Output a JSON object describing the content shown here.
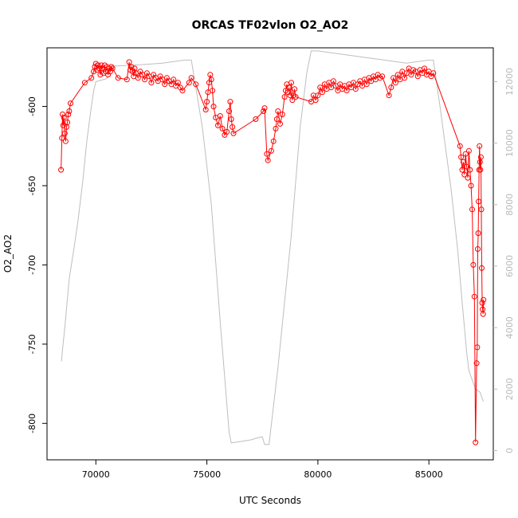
{
  "chart_data": {
    "type": "scatter",
    "title": "ORCAS TF02vlon O2_AO2",
    "xlabel": "UTC Seconds",
    "ylabel": "O2_AO2",
    "xlim": [
      67800,
      87900
    ],
    "ylim": [
      -823,
      -563
    ],
    "y2lim": [
      -300,
      13100
    ],
    "x_ticks": [
      70000,
      75000,
      80000,
      85000
    ],
    "y_ticks": [
      -800,
      -750,
      -700,
      -650,
      -600
    ],
    "y2_ticks": [
      0,
      2000,
      4000,
      6000,
      8000,
      10000,
      12000
    ],
    "grid": false,
    "series": [
      {
        "color": "#ff0000",
        "marker": "open-circle",
        "connected": true,
        "points": [
          [
            68430,
            -640
          ],
          [
            68470,
            -620
          ],
          [
            68500,
            -605
          ],
          [
            68530,
            -612
          ],
          [
            68560,
            -607
          ],
          [
            68600,
            -617
          ],
          [
            68640,
            -622
          ],
          [
            68680,
            -613
          ],
          [
            68720,
            -610
          ],
          [
            68760,
            -605
          ],
          [
            68800,
            -603
          ],
          [
            68860,
            -598
          ],
          [
            69500,
            -585
          ],
          [
            69800,
            -582
          ],
          [
            69900,
            -578
          ],
          [
            69950,
            -575
          ],
          [
            70000,
            -573
          ],
          [
            70050,
            -577
          ],
          [
            70100,
            -574
          ],
          [
            70150,
            -576
          ],
          [
            70200,
            -580
          ],
          [
            70250,
            -574
          ],
          [
            70300,
            -576
          ],
          [
            70350,
            -579
          ],
          [
            70400,
            -574
          ],
          [
            70450,
            -578
          ],
          [
            70500,
            -575
          ],
          [
            70550,
            -580
          ],
          [
            70600,
            -576
          ],
          [
            70650,
            -578
          ],
          [
            70700,
            -575
          ],
          [
            70750,
            -576
          ],
          [
            71000,
            -582
          ],
          [
            71400,
            -583
          ],
          [
            71500,
            -572
          ],
          [
            71550,
            -577
          ],
          [
            71600,
            -575
          ],
          [
            71650,
            -578
          ],
          [
            71700,
            -581
          ],
          [
            71750,
            -576
          ],
          [
            71800,
            -579
          ],
          [
            71900,
            -582
          ],
          [
            72000,
            -578
          ],
          [
            72100,
            -580
          ],
          [
            72200,
            -583
          ],
          [
            72300,
            -579
          ],
          [
            72400,
            -581
          ],
          [
            72500,
            -585
          ],
          [
            72600,
            -580
          ],
          [
            72700,
            -582
          ],
          [
            72800,
            -584
          ],
          [
            72900,
            -581
          ],
          [
            73000,
            -583
          ],
          [
            73100,
            -586
          ],
          [
            73200,
            -582
          ],
          [
            73300,
            -584
          ],
          [
            73400,
            -586
          ],
          [
            73500,
            -583
          ],
          [
            73600,
            -587
          ],
          [
            73700,
            -585
          ],
          [
            73800,
            -588
          ],
          [
            73900,
            -590
          ],
          [
            74200,
            -585
          ],
          [
            74300,
            -582
          ],
          [
            74500,
            -586
          ],
          [
            74950,
            -602
          ],
          [
            75000,
            -597
          ],
          [
            75050,
            -591
          ],
          [
            75100,
            -585
          ],
          [
            75150,
            -580
          ],
          [
            75200,
            -583
          ],
          [
            75250,
            -590
          ],
          [
            75300,
            -600
          ],
          [
            75400,
            -607
          ],
          [
            75500,
            -612
          ],
          [
            75600,
            -606
          ],
          [
            75700,
            -614
          ],
          [
            75800,
            -618
          ],
          [
            75900,
            -616
          ],
          [
            76000,
            -603
          ],
          [
            76050,
            -597
          ],
          [
            76100,
            -608
          ],
          [
            76150,
            -613
          ],
          [
            76200,
            -617
          ],
          [
            77200,
            -608
          ],
          [
            77550,
            -603
          ],
          [
            77600,
            -601
          ],
          [
            77700,
            -630
          ],
          [
            77750,
            -634
          ],
          [
            77900,
            -628
          ],
          [
            78000,
            -622
          ],
          [
            78100,
            -614
          ],
          [
            78150,
            -608
          ],
          [
            78200,
            -603
          ],
          [
            78300,
            -611
          ],
          [
            78400,
            -605
          ],
          [
            78500,
            -594
          ],
          [
            78550,
            -590
          ],
          [
            78600,
            -586
          ],
          [
            78650,
            -591
          ],
          [
            78700,
            -588
          ],
          [
            78750,
            -593
          ],
          [
            78800,
            -585
          ],
          [
            78850,
            -596
          ],
          [
            78900,
            -593
          ],
          [
            78950,
            -589
          ],
          [
            79000,
            -594
          ],
          [
            79700,
            -597
          ],
          [
            79800,
            -593
          ],
          [
            79900,
            -596
          ],
          [
            80000,
            -593
          ],
          [
            80100,
            -588
          ],
          [
            80200,
            -591
          ],
          [
            80300,
            -586
          ],
          [
            80400,
            -589
          ],
          [
            80500,
            -585
          ],
          [
            80600,
            -588
          ],
          [
            80700,
            -584
          ],
          [
            80800,
            -587
          ],
          [
            80900,
            -590
          ],
          [
            81000,
            -586
          ],
          [
            81100,
            -589
          ],
          [
            81200,
            -587
          ],
          [
            81300,
            -590
          ],
          [
            81400,
            -586
          ],
          [
            81500,
            -588
          ],
          [
            81600,
            -585
          ],
          [
            81700,
            -589
          ],
          [
            81800,
            -586
          ],
          [
            81900,
            -584
          ],
          [
            82000,
            -587
          ],
          [
            82100,
            -583
          ],
          [
            82200,
            -586
          ],
          [
            82300,
            -582
          ],
          [
            82400,
            -584
          ],
          [
            82500,
            -581
          ],
          [
            82600,
            -583
          ],
          [
            82700,
            -580
          ],
          [
            82800,
            -582
          ],
          [
            82900,
            -581
          ],
          [
            83200,
            -593
          ],
          [
            83300,
            -588
          ],
          [
            83400,
            -582
          ],
          [
            83500,
            -585
          ],
          [
            83600,
            -580
          ],
          [
            83700,
            -583
          ],
          [
            83800,
            -578
          ],
          [
            83900,
            -582
          ],
          [
            84000,
            -579
          ],
          [
            84100,
            -576
          ],
          [
            84200,
            -580
          ],
          [
            84300,
            -577
          ],
          [
            84400,
            -578
          ],
          [
            84500,
            -581
          ],
          [
            84600,
            -577
          ],
          [
            84700,
            -579
          ],
          [
            84800,
            -576
          ],
          [
            84900,
            -580
          ],
          [
            85000,
            -578
          ],
          [
            85100,
            -581
          ],
          [
            85200,
            -579
          ],
          [
            86400,
            -625
          ],
          [
            86450,
            -632
          ],
          [
            86500,
            -640
          ],
          [
            86550,
            -635
          ],
          [
            86600,
            -643
          ],
          [
            86650,
            -630
          ],
          [
            86700,
            -638
          ],
          [
            86750,
            -645
          ],
          [
            86800,
            -628
          ],
          [
            86850,
            -640
          ],
          [
            86900,
            -650
          ],
          [
            86950,
            -665
          ],
          [
            87000,
            -700
          ],
          [
            87050,
            -720
          ],
          [
            87100,
            -812
          ],
          [
            87150,
            -762
          ],
          [
            87180,
            -752
          ],
          [
            87200,
            -690
          ],
          [
            87220,
            -680
          ],
          [
            87240,
            -660
          ],
          [
            87260,
            -640
          ],
          [
            87280,
            -625
          ],
          [
            87300,
            -635
          ],
          [
            87320,
            -640
          ],
          [
            87340,
            -632
          ],
          [
            87360,
            -665
          ],
          [
            87380,
            -702
          ],
          [
            87400,
            -724
          ],
          [
            87420,
            -728
          ],
          [
            87440,
            -731
          ],
          [
            87460,
            -722
          ]
        ]
      },
      {
        "color": "#bebebe",
        "axis": "right",
        "line_only": true,
        "points": [
          [
            68450,
            2900
          ],
          [
            68500,
            3300
          ],
          [
            68600,
            4000
          ],
          [
            68800,
            5600
          ],
          [
            69000,
            6500
          ],
          [
            69200,
            7500
          ],
          [
            69400,
            8700
          ],
          [
            69600,
            10100
          ],
          [
            69800,
            11200
          ],
          [
            69900,
            11700
          ],
          [
            70000,
            12000
          ],
          [
            70500,
            12100
          ],
          [
            70700,
            12500
          ],
          [
            72000,
            12550
          ],
          [
            73000,
            12600
          ],
          [
            74000,
            12700
          ],
          [
            74300,
            12700
          ],
          [
            74800,
            10500
          ],
          [
            75200,
            8000
          ],
          [
            75600,
            4200
          ],
          [
            76000,
            600
          ],
          [
            76100,
            250
          ],
          [
            77000,
            350
          ],
          [
            77200,
            400
          ],
          [
            77500,
            450
          ],
          [
            77600,
            200
          ],
          [
            77800,
            200
          ],
          [
            78200,
            2700
          ],
          [
            78800,
            7000
          ],
          [
            79200,
            10500
          ],
          [
            79500,
            12300
          ],
          [
            79700,
            13000
          ],
          [
            80000,
            13000
          ],
          [
            81000,
            12900
          ],
          [
            82000,
            12800
          ],
          [
            83000,
            12700
          ],
          [
            84000,
            12600
          ],
          [
            85000,
            12700
          ],
          [
            85200,
            12700
          ],
          [
            85500,
            11200
          ],
          [
            86000,
            8500
          ],
          [
            86300,
            6500
          ],
          [
            86500,
            4800
          ],
          [
            86700,
            3200
          ],
          [
            86800,
            2600
          ],
          [
            86900,
            2400
          ],
          [
            87000,
            2200
          ],
          [
            87100,
            2000
          ],
          [
            87300,
            1900
          ],
          [
            87450,
            1600
          ]
        ]
      }
    ]
  }
}
